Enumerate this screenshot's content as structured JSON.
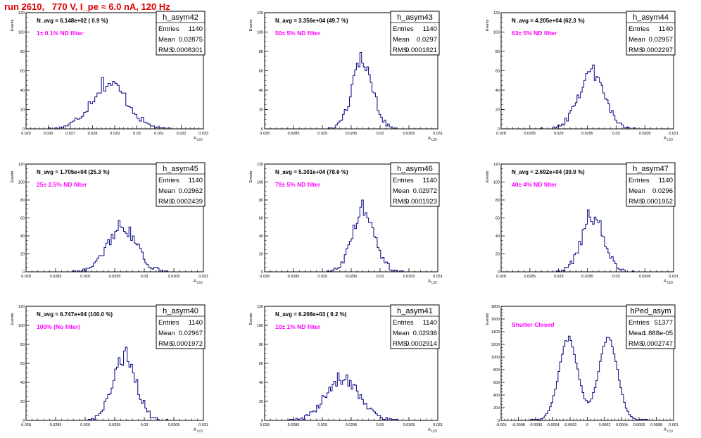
{
  "page": {
    "title": "run 2610,   770 V, I_pe ≈ 6.0 nA, 120 Hz"
  },
  "colors": {
    "title": "#e00000",
    "histogram": "#000080",
    "annotation": "#ff00ff",
    "axis": "#000000"
  },
  "chart_data": [
    {
      "type": "bar",
      "name": "h_asym42",
      "n_avg": "N_avg = 6.148e+02 ( 0.9 %)",
      "annotation": "1± 0.1% ND filter",
      "stats": {
        "Entries": "1140",
        "Mean": "0.02875",
        "RMS": "0.0008301"
      },
      "xlim": [
        0.025,
        0.033
      ],
      "ylim": [
        0,
        120
      ],
      "xticks": [
        "0.025",
        "0.026",
        "0.027",
        "0.028",
        "0.029",
        "0.03",
        "0.031",
        "0.032",
        "0.033"
      ],
      "yticks": [
        "0",
        "20",
        "40",
        "60",
        "80",
        "100",
        "120"
      ],
      "xlabel": "A_LED",
      "ylabel": "Events",
      "bins": 80,
      "mean": 0.02875,
      "rms": 0.0008301,
      "peak": 53
    },
    {
      "type": "bar",
      "name": "h_asym43",
      "n_avg": "N_avg = 3.356e+04 (49.7 %)",
      "annotation": "50± 5% ND filter",
      "stats": {
        "Entries": "1140",
        "Mean": "0.0297",
        "RMS": "0.0001821"
      },
      "xlim": [
        0.028,
        0.031
      ],
      "ylim": [
        0,
        120
      ],
      "xticks": [
        "0.028",
        "0.0285",
        "0.029",
        "0.0295",
        "0.03",
        "0.0305",
        "0.031"
      ],
      "yticks": [
        "0",
        "20",
        "40",
        "60",
        "80",
        "100",
        "120"
      ],
      "xlabel": "A_LED",
      "ylabel": "Events",
      "bins": 100,
      "mean": 0.0297,
      "rms": 0.0001821,
      "peak": 79
    },
    {
      "type": "bar",
      "name": "h_asym44",
      "n_avg": "N_avg = 4.205e+04 (62.3 %)",
      "annotation": "63± 5% ND filter",
      "stats": {
        "Entries": "1140",
        "Mean": "0.02957",
        "RMS": "0.0002297"
      },
      "xlim": [
        0.028,
        0.031
      ],
      "ylim": [
        0,
        120
      ],
      "xticks": [
        "0.028",
        "0.0285",
        "0.029",
        "0.0295",
        "0.03",
        "0.0305",
        "0.031"
      ],
      "yticks": [
        "0",
        "20",
        "40",
        "60",
        "80",
        "100",
        "120"
      ],
      "xlabel": "A_LED",
      "ylabel": "Events",
      "bins": 100,
      "mean": 0.02957,
      "rms": 0.0002297,
      "peak": 66
    },
    {
      "type": "bar",
      "name": "h_asym45",
      "n_avg": "N_avg = 1.705e+04 (25.3 %)",
      "annotation": "25± 2.5% ND filter",
      "stats": {
        "Entries": "1140",
        "Mean": "0.02962",
        "RMS": "0.0002439"
      },
      "xlim": [
        0.028,
        0.031
      ],
      "ylim": [
        0,
        120
      ],
      "xticks": [
        "0.028",
        "0.0285",
        "0.029",
        "0.0295",
        "0.03",
        "0.0305",
        "0.031"
      ],
      "yticks": [
        "0",
        "20",
        "40",
        "60",
        "80",
        "100",
        "120"
      ],
      "xlabel": "A_LED",
      "ylabel": "Events",
      "bins": 100,
      "mean": 0.02962,
      "rms": 0.0002439,
      "peak": 57
    },
    {
      "type": "bar",
      "name": "h_asym46",
      "n_avg": "N_avg = 5.301e+04 (78.6 %)",
      "annotation": "79± 5% ND filter",
      "stats": {
        "Entries": "1140",
        "Mean": "0.02972",
        "RMS": "0.0001923"
      },
      "xlim": [
        0.028,
        0.031
      ],
      "ylim": [
        0,
        120
      ],
      "xticks": [
        "0.028",
        "0.0285",
        "0.029",
        "0.0295",
        "0.03",
        "0.0305",
        "0.031"
      ],
      "yticks": [
        "0",
        "20",
        "40",
        "60",
        "80",
        "100",
        "120"
      ],
      "xlabel": "A_LED",
      "ylabel": "Events",
      "bins": 100,
      "mean": 0.02972,
      "rms": 0.0001923,
      "peak": 80
    },
    {
      "type": "bar",
      "name": "h_asym47",
      "n_avg": "N_avg = 2.692e+04 (39.9 %)",
      "annotation": "40± 4% ND filter",
      "stats": {
        "Entries": "1140",
        "Mean": "0.0296",
        "RMS": "0.0001952"
      },
      "xlim": [
        0.028,
        0.031
      ],
      "ylim": [
        0,
        120
      ],
      "xticks": [
        "0.028",
        "0.0285",
        "0.029",
        "0.0295",
        "0.03",
        "0.0305",
        "0.031"
      ],
      "yticks": [
        "0",
        "20",
        "40",
        "60",
        "80",
        "100",
        "120"
      ],
      "xlabel": "A_LED",
      "ylabel": "Events",
      "bins": 100,
      "mean": 0.0296,
      "rms": 0.0001952,
      "peak": 69
    },
    {
      "type": "bar",
      "name": "h_asym40",
      "n_avg": "N_avg = 6.747e+04 (100.0 %)",
      "annotation": "100% (No filter)",
      "stats": {
        "Entries": "1140",
        "Mean": "0.02967",
        "RMS": "0.0001972"
      },
      "xlim": [
        0.028,
        0.031
      ],
      "ylim": [
        0,
        120
      ],
      "xticks": [
        "0.028",
        "0.0285",
        "0.029",
        "0.0295",
        "0.03",
        "0.0305",
        "0.031"
      ],
      "yticks": [
        "0",
        "20",
        "40",
        "60",
        "80",
        "100",
        "120"
      ],
      "xlabel": "A_LED",
      "ylabel": "Events",
      "bins": 100,
      "mean": 0.02967,
      "rms": 0.0001972,
      "peak": 77
    },
    {
      "type": "bar",
      "name": "h_asym41",
      "n_avg": "N_avg = 6.208e+03 ( 9.2 %)",
      "annotation": "10± 1% ND filter",
      "stats": {
        "Entries": "1140",
        "Mean": "0.02936",
        "RMS": "0.0002914"
      },
      "xlim": [
        0.028,
        0.031
      ],
      "ylim": [
        0,
        120
      ],
      "xticks": [
        "0.028",
        "0.0285",
        "0.029",
        "0.0295",
        "0.03",
        "0.0305",
        "0.031"
      ],
      "yticks": [
        "0",
        "20",
        "40",
        "60",
        "80",
        "100",
        "120"
      ],
      "xlabel": "A_LED",
      "ylabel": "Events",
      "bins": 100,
      "mean": 0.02936,
      "rms": 0.0002914,
      "peak": 50
    },
    {
      "type": "bar",
      "name": "hPed_asym",
      "n_avg": "",
      "annotation": "Shutter Closed",
      "stats": {
        "Entries": "51377",
        "Mean": "1.888e-05",
        "RMS": "0.0002747"
      },
      "xlim": [
        -0.001,
        0.001
      ],
      "ylim": [
        0,
        1800
      ],
      "xticks": [
        "-0.001",
        "-0.0008",
        "-0.0006",
        "-0.0004",
        "-0.0002",
        "0",
        "0.0002",
        "0.0004",
        "0.0006",
        "0.0008",
        "0.001"
      ],
      "yticks": [
        "0",
        "200",
        "400",
        "600",
        "800",
        "1000",
        "1200",
        "1400",
        "1600",
        "1800"
      ],
      "xlabel": "A_LED",
      "ylabel": "Events",
      "bins": 100,
      "bimodal": {
        "peaks": [
          -0.00022,
          0.00024
        ],
        "width": 0.00011,
        "heights": [
          1330,
          1330
        ]
      },
      "peak": 1330
    }
  ]
}
